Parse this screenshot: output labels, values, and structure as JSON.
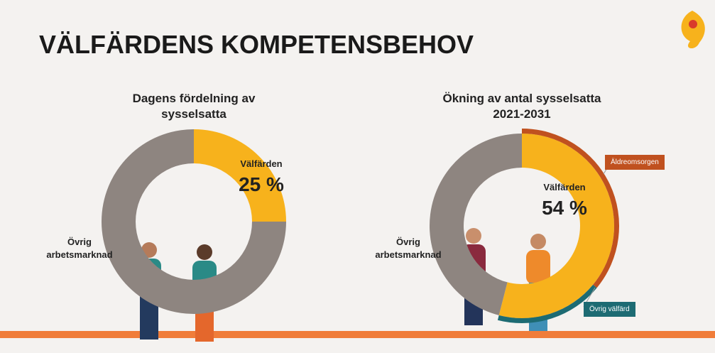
{
  "title": "VÄLFÄRDENS KOMPETENSBEHOV",
  "chart_data": [
    {
      "type": "donut",
      "title": "Dagens fördelning av sysselsatta",
      "categories": [
        "Välfärden",
        "Övrig arbetsmarknad"
      ],
      "values": [
        25,
        75
      ],
      "value_labels": [
        "25 %",
        null
      ],
      "colors": [
        "#f7b21c",
        "#8e8580"
      ]
    },
    {
      "type": "donut",
      "title": "Ökning av antal sysselsatta 2021-2031",
      "categories": [
        "Välfärden",
        "Övrig arbetsmarknad"
      ],
      "values": [
        54,
        46
      ],
      "value_labels": [
        "54 %",
        null
      ],
      "colors": [
        "#f7b21c",
        "#8e8580"
      ],
      "breakdown": {
        "categories": [
          "Äldreomsorgen",
          "Övrig välfärd"
        ],
        "values": [
          36,
          18
        ],
        "colors": [
          "#c0511f",
          "#1d6b73"
        ]
      }
    }
  ]
}
